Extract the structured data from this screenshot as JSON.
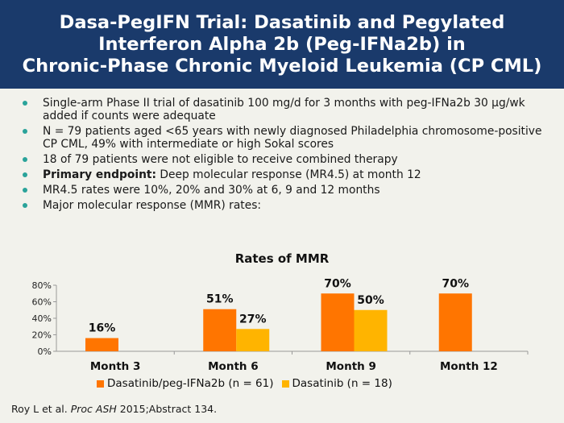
{
  "title": "Dasa-PegIFN Trial: Dasatinib and Pegylated\nInterferon Alpha 2b (Peg-IFNa2b) in\nChronic-Phase Chronic Myeloid Leukemia (CP CML)",
  "bullets": [
    {
      "bold": "",
      "text": "Single-arm Phase II trial of dasatinib 100 mg/d for 3 months with peg-IFNa2b 30 µg/wk added if counts were adequate"
    },
    {
      "bold": "",
      "text": "N = 79 patients aged <65 years with newly diagnosed Philadelphia chromosome-positive CP CML, 49% with intermediate or high Sokal scores"
    },
    {
      "bold": "",
      "text": "18 of 79 patients were not eligible to receive combined therapy"
    },
    {
      "bold": "Primary endpoint:",
      "text": " Deep molecular response (MR4.5) at month 12"
    },
    {
      "bold": "",
      "text": "MR4.5 rates were 10%, 20% and 30% at 6, 9 and 12 months"
    },
    {
      "bold": "",
      "text": "Major molecular response (MMR) rates:"
    }
  ],
  "colors": {
    "accent": "#ff7500",
    "secondary": "#ffb400",
    "bullet": "#2aa39a",
    "header": "#1a3a6b"
  },
  "chart_data": {
    "type": "bar",
    "title": "Rates of MMR",
    "categories": [
      "Month 3",
      "Month 6",
      "Month 9",
      "Month 12"
    ],
    "series": [
      {
        "name": "Dasatinib/peg-IFNa2b (n = 61)",
        "color": "#ff7500",
        "values": [
          16,
          51,
          70,
          70
        ],
        "labels": [
          "16%",
          "51%",
          "70%",
          "70%"
        ]
      },
      {
        "name": "Dasatinib (n = 18)",
        "color": "#ffb400",
        "values": [
          null,
          27,
          50,
          null
        ],
        "labels": [
          "",
          "27%",
          "50%",
          ""
        ]
      }
    ],
    "yticks": [
      "0%",
      "20%",
      "40%",
      "60%",
      "80%"
    ],
    "ylim": [
      0,
      80
    ],
    "xlabel": "",
    "ylabel": "",
    "legend": "bottom"
  },
  "citation": {
    "prefix": "Roy L et al. ",
    "journal": "Proc ASH",
    "suffix": " 2015;Abstract 134."
  }
}
